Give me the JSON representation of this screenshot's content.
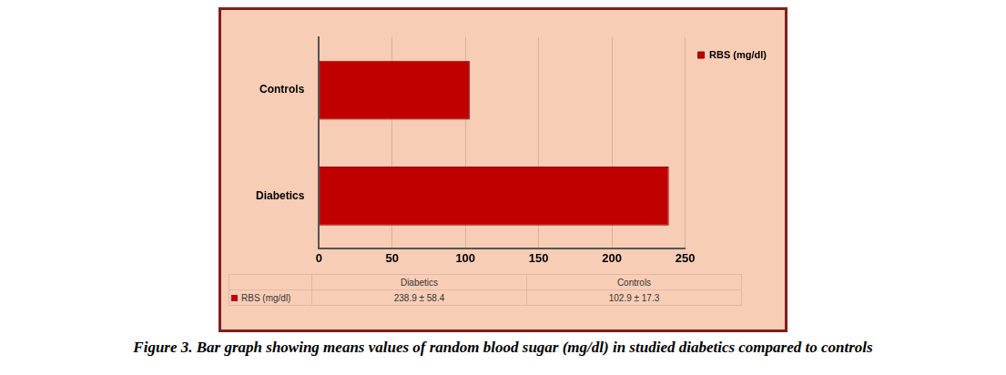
{
  "chart_data": {
    "type": "bar",
    "orientation": "horizontal",
    "caption": "Figure 3. Bar graph showing means values of random blood sugar (mg/dl) in studied diabetics compared to controls",
    "categories": [
      "Diabetics",
      "Controls"
    ],
    "series": [
      {
        "name": "RBS (mg/dl)",
        "color": "#c00000",
        "values": [
          238.9,
          102.9
        ],
        "value_labels": [
          "238.9 ± 58.4",
          "102.9 ± 17.3"
        ]
      }
    ],
    "xlim": [
      0,
      250
    ],
    "xticks": [
      0,
      50,
      100,
      150,
      200,
      250
    ],
    "grid": true,
    "legend": "right"
  }
}
